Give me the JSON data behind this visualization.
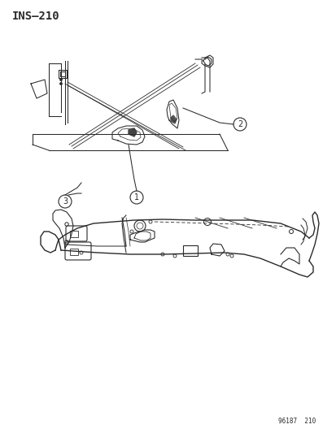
{
  "title": "INS–210",
  "footer": "96187  210",
  "bg": "#ffffff",
  "lc": "#2a2a2a",
  "figsize": [
    4.14,
    5.33
  ],
  "dpi": 100
}
